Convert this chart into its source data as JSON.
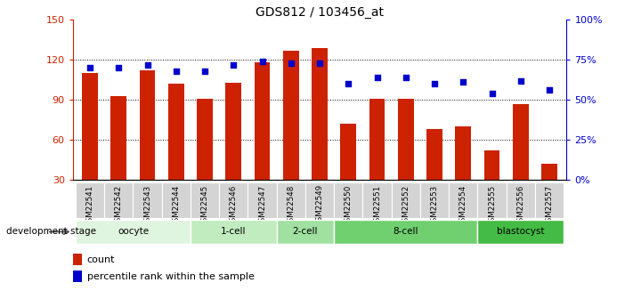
{
  "title": "GDS812 / 103456_at",
  "samples": [
    "GSM22541",
    "GSM22542",
    "GSM22543",
    "GSM22544",
    "GSM22545",
    "GSM22546",
    "GSM22547",
    "GSM22548",
    "GSM22549",
    "GSM22550",
    "GSM22551",
    "GSM22552",
    "GSM22553",
    "GSM22554",
    "GSM22555",
    "GSM22556",
    "GSM22557"
  ],
  "counts": [
    110,
    93,
    112,
    102,
    91,
    103,
    118,
    127,
    129,
    72,
    91,
    91,
    68,
    70,
    52,
    87,
    42
  ],
  "percentiles": [
    70,
    70,
    72,
    68,
    68,
    72,
    74,
    73,
    73,
    60,
    64,
    64,
    60,
    61,
    54,
    62,
    56
  ],
  "ylim_left": [
    30,
    150
  ],
  "ylim_right": [
    0,
    100
  ],
  "yticks_left": [
    30,
    60,
    90,
    120,
    150
  ],
  "yticks_right": [
    0,
    25,
    50,
    75,
    100
  ],
  "yticklabels_right": [
    "0%",
    "25%",
    "50%",
    "75%",
    "100%"
  ],
  "bar_color": "#cc2200",
  "dot_color": "#0000cc",
  "bg_color": "#ffffff",
  "stage_groups": [
    {
      "label": "oocyte",
      "count": 4,
      "color": "#e0f5e0"
    },
    {
      "label": "1-cell",
      "count": 3,
      "color": "#c0ecc0"
    },
    {
      "label": "2-cell",
      "count": 2,
      "color": "#a0e0a0"
    },
    {
      "label": "8-cell",
      "count": 5,
      "color": "#70d070"
    },
    {
      "label": "blastocyst",
      "count": 3,
      "color": "#44bb44"
    }
  ],
  "dev_stage_label": "development stage",
  "legend_count_label": "count",
  "legend_pct_label": "percentile rank within the sample",
  "bar_color_legend": "#cc2200",
  "dot_color_legend": "#0000cc"
}
